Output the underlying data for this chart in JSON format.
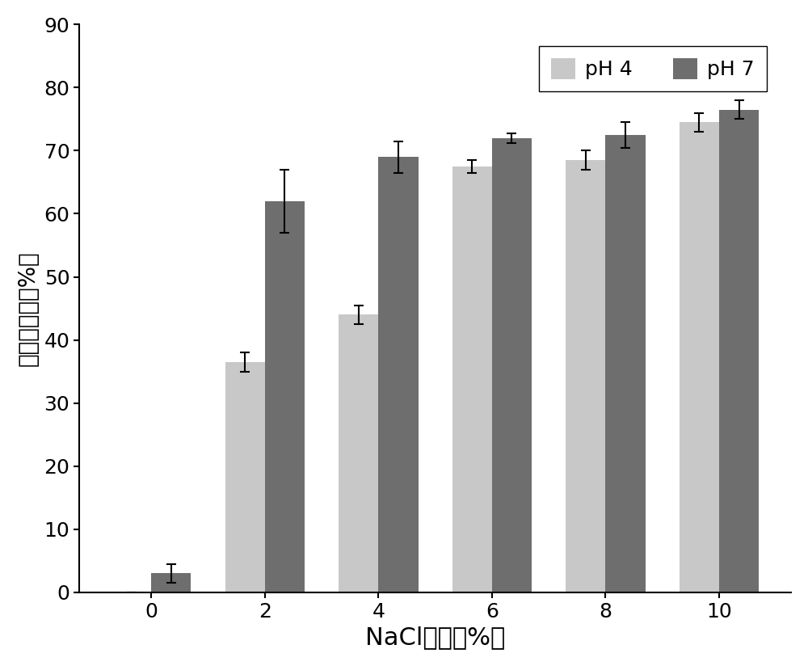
{
  "categories": [
    0,
    2,
    4,
    6,
    8,
    10
  ],
  "ph4_values": [
    0,
    36.5,
    44,
    67.5,
    68.5,
    74.5
  ],
  "ph7_values": [
    3.0,
    62.0,
    69.0,
    72.0,
    72.5,
    76.5
  ],
  "ph4_errors": [
    0,
    1.5,
    1.5,
    1.0,
    1.5,
    1.5
  ],
  "ph7_errors": [
    1.5,
    5.0,
    2.5,
    0.8,
    2.0,
    1.5
  ],
  "ph4_color": "#c8c8c8",
  "ph7_color": "#6e6e6e",
  "xlabel": "NaCl浓度（%）",
  "ylabel": "组胺降解率（%）",
  "ylim": [
    0,
    90
  ],
  "yticks": [
    0,
    10,
    20,
    30,
    40,
    50,
    60,
    70,
    80,
    90
  ],
  "legend_labels": [
    "pH 4",
    "pH 7"
  ],
  "bar_width": 0.35,
  "xlabel_fontsize": 22,
  "ylabel_fontsize": 20,
  "tick_fontsize": 18,
  "legend_fontsize": 18,
  "background_color": "#ffffff",
  "error_capsize": 4,
  "error_linewidth": 1.5
}
